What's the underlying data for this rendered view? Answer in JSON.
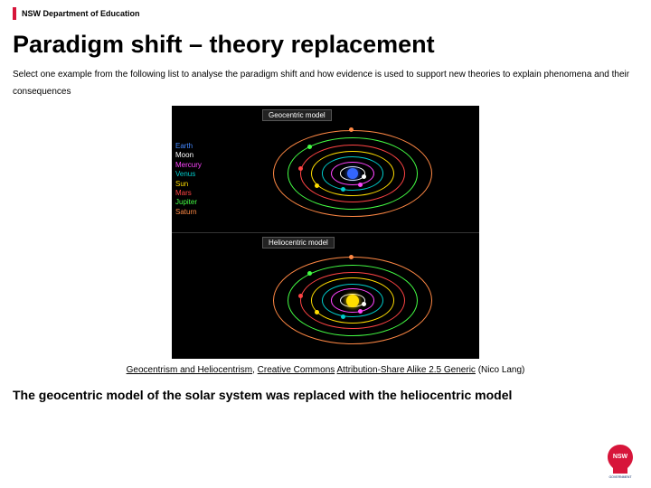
{
  "header": {
    "org": "NSW Department of Education"
  },
  "title": "Paradigm shift – theory replacement",
  "intro": "Select one example from the following list to analyse the paradigm shift and how evidence is used to support new theories to explain phenomena and their consequences",
  "diagram": {
    "panels": [
      {
        "label": "Geocentric model",
        "center_color": "#3366ff",
        "center_size": 12
      },
      {
        "label": "Heliocentric model",
        "center_color": "#ffdd00",
        "center_size": 14
      }
    ],
    "legend": [
      {
        "name": "Earth",
        "color": "#4488ff"
      },
      {
        "name": "Moon",
        "color": "#ffffff"
      },
      {
        "name": "Mercury",
        "color": "#ff44ff"
      },
      {
        "name": "Venus",
        "color": "#00cccc"
      },
      {
        "name": "Sun",
        "color": "#ffdd00"
      },
      {
        "name": "Mars",
        "color": "#ff4444"
      },
      {
        "name": "Jupiter",
        "color": "#44ff44"
      },
      {
        "name": "Saturn",
        "color": "#ff8844"
      }
    ],
    "orbit_colors": [
      "#ffffff",
      "#ff44ff",
      "#00cccc",
      "#ffdd00",
      "#ff4444",
      "#44ff44",
      "#ff8844"
    ]
  },
  "caption": {
    "link1": "Geocentrism and Heliocentrism",
    "mid1": ", ",
    "link2": "Creative Commons",
    "mid2": " ",
    "link3": "Attribution-Share Alike 2.5 Generic",
    "author": " (Nico Lang)"
  },
  "footer": "The geocentric model of the solar system was replaced with the heliocentric model",
  "logo": {
    "label": "NSW",
    "sub": "GOVERNMENT"
  },
  "colors": {
    "accent": "#d7153a"
  }
}
